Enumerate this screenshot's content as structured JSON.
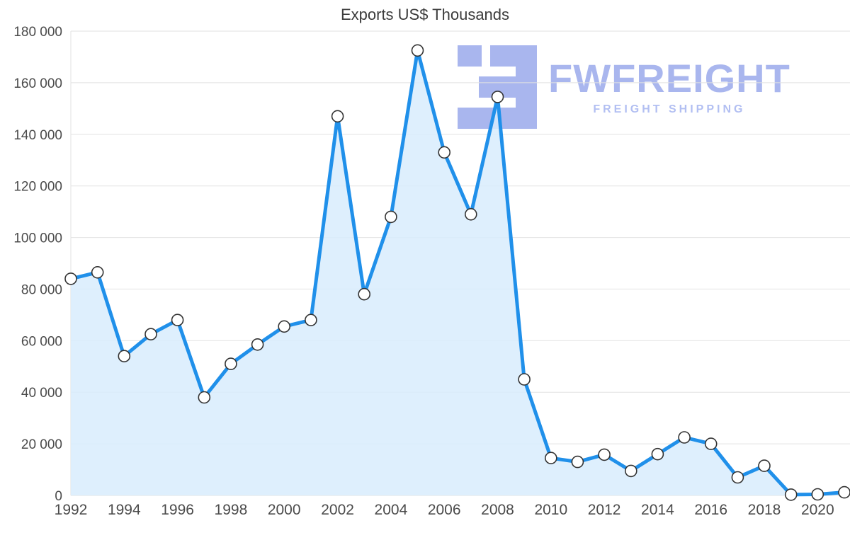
{
  "title": "Exports US$ Thousands",
  "watermark": {
    "brand": "FWFREIGHT",
    "tagline": "FREIGHT SHIPPING"
  },
  "colors": {
    "line": "#2090ea",
    "area": "#d8ecfd",
    "grid": "#e2e2e2",
    "axis_text": "#4b4b4b",
    "title_text": "#3c3c3c",
    "marker_fill": "#ffffff",
    "marker_stroke": "#333333",
    "watermark": "#a9b6ee",
    "watermark_tagline": "#b2bff2"
  },
  "chart_data": {
    "type": "area",
    "title": "Exports US$ Thousands",
    "x": [
      1992,
      1993,
      1994,
      1995,
      1996,
      1997,
      1998,
      1999,
      2000,
      2001,
      2002,
      2003,
      2004,
      2005,
      2006,
      2007,
      2008,
      2009,
      2010,
      2011,
      2012,
      2013,
      2014,
      2015,
      2016,
      2017,
      2018,
      2019,
      2020,
      2021
    ],
    "values": [
      84000,
      86500,
      54000,
      62500,
      68000,
      38000,
      51000,
      58500,
      65500,
      68000,
      147000,
      78000,
      108000,
      172500,
      133000,
      109000,
      154500,
      45000,
      14500,
      13000,
      15800,
      9500,
      16000,
      22500,
      20000,
      7000,
      11500,
      300,
      400,
      1200
    ],
    "ylim": [
      0,
      180000
    ],
    "ytick_values": [
      0,
      20000,
      40000,
      60000,
      80000,
      100000,
      120000,
      140000,
      160000,
      180000
    ],
    "ytick_labels": [
      "0",
      "20 000",
      "40 000",
      "60 000",
      "80 000",
      "100 000",
      "120 000",
      "140 000",
      "160 000",
      "180 000"
    ],
    "xtick_labels": [
      "1992",
      "1994",
      "1996",
      "1998",
      "2000",
      "2002",
      "2004",
      "2006",
      "2008",
      "2010",
      "2012",
      "2014",
      "2016",
      "2018",
      "2020"
    ],
    "grid": true,
    "legend": "none",
    "marker": "circle-open"
  }
}
